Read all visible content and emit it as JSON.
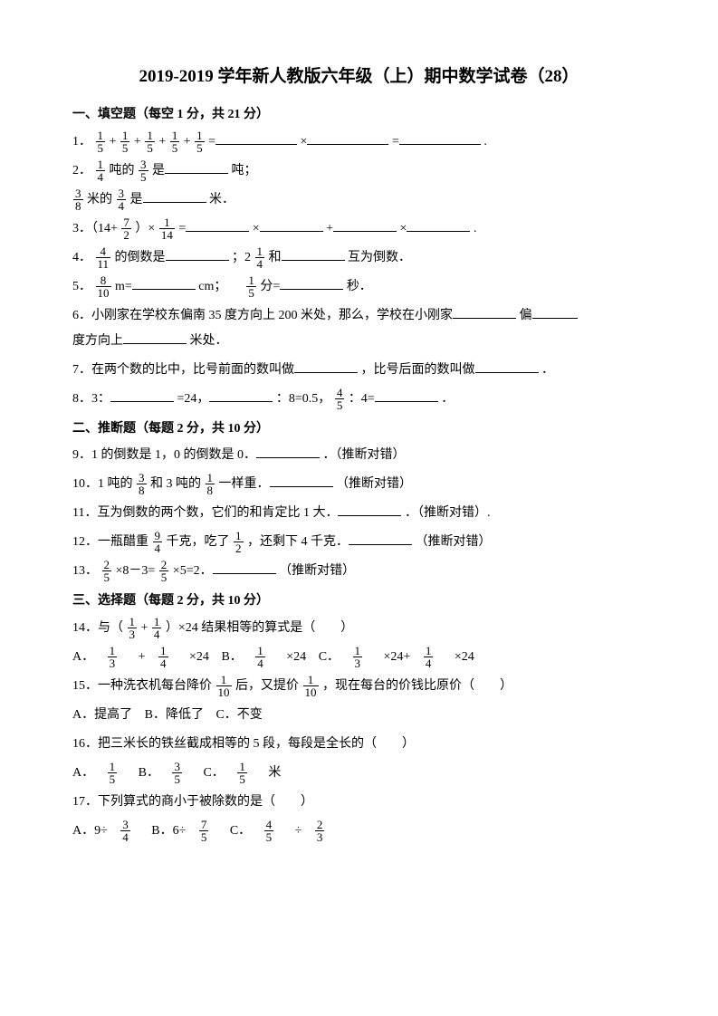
{
  "title": "2019-2019 学年新人教版六年级（上）期中数学试卷（28）",
  "s1": {
    "heading": "一、填空题（每空 1 分，共 21 分）"
  },
  "q1": {
    "num": "1．",
    "f": {
      "n": "1",
      "d": "5"
    },
    "plus": "+",
    "eq1": "=",
    "x": "×",
    "eq2": "=",
    "period": "."
  },
  "q2a": {
    "num": "2．",
    "f1": {
      "n": "1",
      "d": "4"
    },
    "t1": "吨的",
    "f2": {
      "n": "3",
      "d": "5"
    },
    "t2": "是",
    "unit": "吨；"
  },
  "q2b": {
    "f1": {
      "n": "3",
      "d": "8"
    },
    "t1": "米的",
    "f2": {
      "n": "3",
      "d": "4"
    },
    "t2": "是",
    "unit": "米．"
  },
  "q3": {
    "num": "3．（14+",
    "f1": {
      "n": "7",
      "d": "2"
    },
    "t1": "）×",
    "f2": {
      "n": "1",
      "d": "14"
    },
    "eq": "=",
    "x": "×",
    "plus": "+",
    "period": "."
  },
  "q4": {
    "num": "4．",
    "f1": {
      "n": "4",
      "d": "11"
    },
    "t1": "的倒数是",
    "semi": "；2",
    "f2": {
      "n": "1",
      "d": "4"
    },
    "t2": "和",
    "t3": "互为倒数．"
  },
  "q5": {
    "num": "5．",
    "f1": {
      "n": "8",
      "d": "10"
    },
    "t1": " m=",
    "unit1": "cm；",
    "f2": {
      "n": "1",
      "d": "5"
    },
    "t2": "分=",
    "unit2": "秒．"
  },
  "q6": {
    "num": "6．小刚家在学校东偏南 35 度方向上 200 米处，那么，学校在小刚家",
    "t1": "偏",
    "t2": "度方向上",
    "t3": "米处．"
  },
  "q7": {
    "num": "7．在两个数的比中，比号前面的数叫做",
    "t1": "，比号后面的数叫做",
    "period": "．"
  },
  "q8": {
    "num": "8．3：",
    "eq1": "=24，",
    "t1": "：8=0.5，",
    "f": {
      "n": "4",
      "d": "5"
    },
    "t2": "：4=",
    "period": "．"
  },
  "s2": {
    "heading": "二、推断题（每题 2 分，共 10 分）"
  },
  "q9": {
    "num": "9．1 的倒数是 1，0 的倒数是 0．",
    "tag": "．（推断对错）"
  },
  "q10": {
    "num": "10．1 吨的",
    "f1": {
      "n": "3",
      "d": "8"
    },
    "t1": "和 3 吨的",
    "f2": {
      "n": "1",
      "d": "8"
    },
    "t2": "一样重．",
    "tag": "（推断对错）"
  },
  "q11": {
    "num": "11．互为倒数的两个数，它们的和肯定比 1 大．",
    "tag": "．（推断对错）."
  },
  "q12": {
    "num": "12．一瓶醋重",
    "f1": {
      "n": "9",
      "d": "4"
    },
    "t1": "千克，吃了",
    "f2": {
      "n": "1",
      "d": "2"
    },
    "t2": "，还剩下 4 千克．",
    "tag": "（推断对错）"
  },
  "q13": {
    "num": "13．",
    "f1": {
      "n": "2",
      "d": "5"
    },
    "t1": "×8－3=",
    "f2": {
      "n": "2",
      "d": "5"
    },
    "t2": "×5=2．",
    "tag": "（推断对错）"
  },
  "s3": {
    "heading": "三、选择题（每题 2 分，共 10 分）"
  },
  "q14": {
    "num": "14．与（",
    "f1": {
      "n": "1",
      "d": "3"
    },
    "plus": "+",
    "f2": {
      "n": "1",
      "d": "4"
    },
    "t1": "）×24 结果相等的算式是（　　）"
  },
  "q14o": {
    "a": "A．",
    "f1": {
      "n": "1",
      "d": "3"
    },
    "plus": " +",
    "f2": {
      "n": "1",
      "d": "4"
    },
    "t1": "×24",
    "b": "B．",
    "f3": {
      "n": "1",
      "d": "4"
    },
    "t2": "×24",
    "c": "C．",
    "f4": {
      "n": "1",
      "d": "3"
    },
    "t3": "×24+",
    "f5": {
      "n": "1",
      "d": "4"
    },
    "t4": "×24"
  },
  "q15": {
    "num": "15．一种洗衣机每台降价",
    "f1": {
      "n": "1",
      "d": "10"
    },
    "t1": "后，又提价",
    "f2": {
      "n": "1",
      "d": "10"
    },
    "t2": "，现在每台的价钱比原价（　　）"
  },
  "q15o": {
    "a": "A．提高了",
    "b": "B．降低了",
    "c": "C．不变"
  },
  "q16": {
    "num": "16．把三米长的铁丝截成相等的 5 段，每段是全长的（　　）"
  },
  "q16o": {
    "a": "A．",
    "f1": {
      "n": "1",
      "d": "5"
    },
    "b": " B．",
    "f2": {
      "n": "3",
      "d": "5"
    },
    "c": " C．",
    "f3": {
      "n": "1",
      "d": "5"
    },
    "unit": "米"
  },
  "q17": {
    "num": "17．下列算式的商小于被除数的是（　　）"
  },
  "q17o": {
    "a": "A．9÷",
    "f1": {
      "n": "3",
      "d": "4"
    },
    "b": "B．6÷",
    "f2": {
      "n": "7",
      "d": "5"
    },
    "c": "C．",
    "f3": {
      "n": "4",
      "d": "5"
    },
    "div": "÷",
    "f4": {
      "n": "2",
      "d": "3"
    }
  }
}
